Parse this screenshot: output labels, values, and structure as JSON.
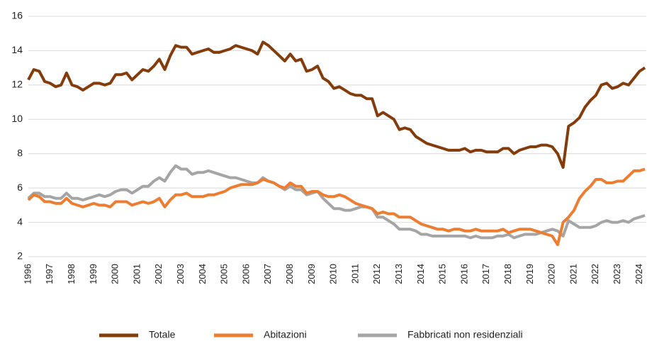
{
  "chart_data": {
    "type": "line",
    "categories": [
      "1996",
      null,
      null,
      null,
      "1997",
      null,
      null,
      null,
      "1998",
      null,
      null,
      null,
      "1999",
      null,
      null,
      null,
      "2000",
      null,
      null,
      null,
      "2001",
      null,
      null,
      null,
      "2002",
      null,
      null,
      null,
      "2003",
      null,
      null,
      null,
      "2004",
      null,
      null,
      null,
      "2005",
      null,
      null,
      null,
      "2006",
      null,
      null,
      null,
      "2007",
      null,
      null,
      null,
      "2008",
      null,
      null,
      null,
      "2009",
      null,
      null,
      null,
      "2010",
      null,
      null,
      null,
      "2011",
      null,
      null,
      null,
      "2012",
      null,
      null,
      null,
      "2013",
      null,
      null,
      null,
      "2014",
      null,
      null,
      null,
      "2015",
      null,
      null,
      null,
      "2016",
      null,
      null,
      null,
      "2017",
      null,
      null,
      null,
      "2018",
      null,
      null,
      null,
      "2019",
      null,
      null,
      null,
      "2020",
      null,
      null,
      null,
      "2021",
      null,
      null,
      null,
      "2022",
      null,
      null,
      null,
      "2023",
      null,
      null,
      null,
      "2024",
      null
    ],
    "series": [
      {
        "name": "Totale",
        "color": "#843c0c",
        "values": [
          12.3,
          12.9,
          12.8,
          12.2,
          12.1,
          11.9,
          12.0,
          12.7,
          12.0,
          11.9,
          11.7,
          11.9,
          12.1,
          12.1,
          12.0,
          12.1,
          12.6,
          12.6,
          12.7,
          12.3,
          12.6,
          12.9,
          12.8,
          13.1,
          13.5,
          12.9,
          13.7,
          14.3,
          14.2,
          14.2,
          13.8,
          13.9,
          14.0,
          14.1,
          13.9,
          13.9,
          14.0,
          14.1,
          14.3,
          14.2,
          14.1,
          14.0,
          13.8,
          14.5,
          14.3,
          14.0,
          13.7,
          13.4,
          13.8,
          13.4,
          13.5,
          12.8,
          12.9,
          13.1,
          12.4,
          12.2,
          11.8,
          11.9,
          11.7,
          11.5,
          11.4,
          11.4,
          11.2,
          11.2,
          10.2,
          10.4,
          10.2,
          10.0,
          9.4,
          9.5,
          9.4,
          9.0,
          8.8,
          8.6,
          8.5,
          8.4,
          8.3,
          8.2,
          8.2,
          8.2,
          8.3,
          8.1,
          8.2,
          8.2,
          8.1,
          8.1,
          8.1,
          8.3,
          8.3,
          8.0,
          8.2,
          8.3,
          8.4,
          8.4,
          8.5,
          8.5,
          8.4,
          8.0,
          7.2,
          9.6,
          9.8,
          10.1,
          10.7,
          11.1,
          11.4,
          12.0,
          12.1,
          11.8,
          11.9,
          12.1,
          12.0,
          12.4,
          12.8,
          13.0
        ]
      },
      {
        "name": "Abitazioni",
        "color": "#ed7d31",
        "values": [
          5.3,
          5.6,
          5.5,
          5.2,
          5.2,
          5.1,
          5.1,
          5.4,
          5.1,
          5.0,
          4.9,
          5.0,
          5.1,
          5.0,
          5.0,
          4.9,
          5.2,
          5.2,
          5.2,
          5.0,
          5.1,
          5.2,
          5.1,
          5.2,
          5.4,
          4.9,
          5.3,
          5.6,
          5.6,
          5.7,
          5.5,
          5.5,
          5.5,
          5.6,
          5.6,
          5.7,
          5.8,
          6.0,
          6.1,
          6.2,
          6.2,
          6.2,
          6.3,
          6.5,
          6.4,
          6.3,
          6.1,
          6.0,
          6.3,
          6.1,
          6.1,
          5.7,
          5.8,
          5.8,
          5.6,
          5.5,
          5.5,
          5.6,
          5.5,
          5.3,
          5.1,
          5.0,
          4.9,
          4.8,
          4.5,
          4.6,
          4.5,
          4.5,
          4.3,
          4.3,
          4.3,
          4.1,
          3.9,
          3.8,
          3.7,
          3.6,
          3.6,
          3.5,
          3.6,
          3.6,
          3.5,
          3.5,
          3.6,
          3.5,
          3.5,
          3.5,
          3.5,
          3.6,
          3.4,
          3.5,
          3.6,
          3.6,
          3.6,
          3.5,
          3.4,
          3.3,
          3.2,
          2.7,
          4.0,
          4.3,
          4.7,
          5.4,
          5.8,
          6.1,
          6.5,
          6.5,
          6.3,
          6.3,
          6.4,
          6.4,
          6.7,
          7.0,
          7.0,
          7.1
        ]
      },
      {
        "name": "Fabbricati non residenziali",
        "color": "#a5a5a5",
        "values": [
          5.4,
          5.7,
          5.7,
          5.5,
          5.5,
          5.4,
          5.4,
          5.7,
          5.4,
          5.4,
          5.3,
          5.4,
          5.5,
          5.6,
          5.5,
          5.6,
          5.8,
          5.9,
          5.9,
          5.7,
          5.9,
          6.1,
          6.1,
          6.4,
          6.6,
          6.4,
          6.9,
          7.3,
          7.1,
          7.1,
          6.8,
          6.9,
          6.9,
          7.0,
          6.9,
          6.8,
          6.7,
          6.6,
          6.6,
          6.5,
          6.4,
          6.3,
          6.3,
          6.6,
          6.4,
          6.3,
          6.1,
          5.9,
          6.1,
          5.9,
          5.9,
          5.6,
          5.7,
          5.8,
          5.4,
          5.1,
          4.8,
          4.8,
          4.7,
          4.7,
          4.8,
          4.9,
          4.9,
          4.8,
          4.3,
          4.3,
          4.1,
          3.9,
          3.6,
          3.6,
          3.6,
          3.5,
          3.3,
          3.3,
          3.2,
          3.2,
          3.2,
          3.2,
          3.2,
          3.2,
          3.2,
          3.1,
          3.2,
          3.1,
          3.1,
          3.1,
          3.2,
          3.2,
          3.3,
          3.1,
          3.2,
          3.3,
          3.3,
          3.3,
          3.4,
          3.5,
          3.6,
          3.5,
          3.2,
          4.1,
          3.9,
          3.7,
          3.7,
          3.7,
          3.8,
          4.0,
          4.1,
          4.0,
          4.0,
          4.1,
          4.0,
          4.2,
          4.3,
          4.4
        ]
      }
    ],
    "ylim": [
      2,
      16
    ],
    "yticks": [
      2,
      4,
      6,
      8,
      10,
      12,
      14,
      16
    ],
    "grid": true,
    "legend": "bottom"
  }
}
